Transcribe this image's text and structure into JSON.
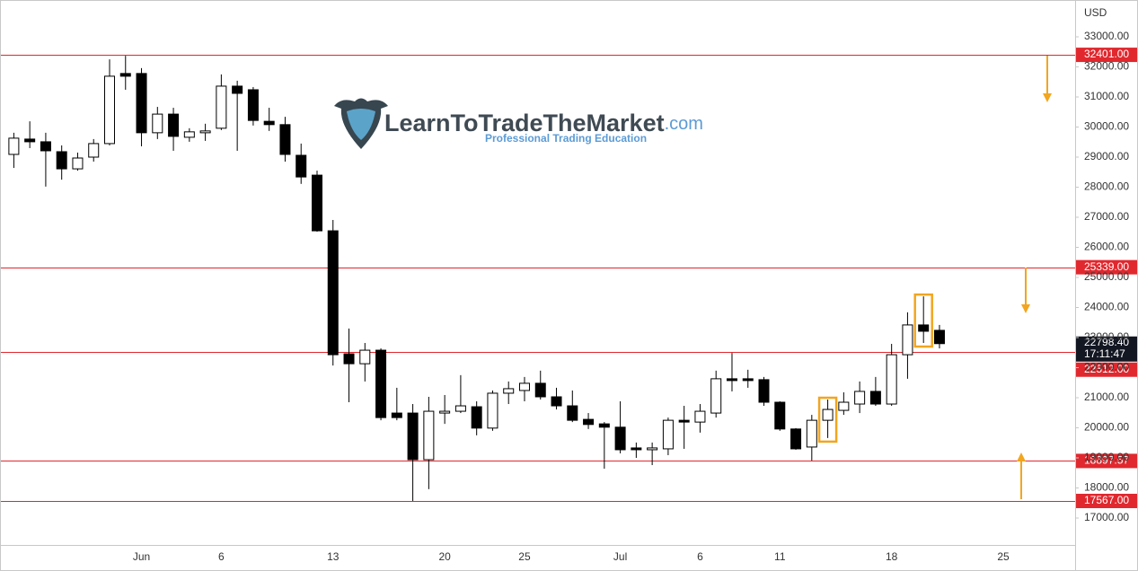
{
  "chart_data": {
    "type": "candlestick",
    "currency": "USD",
    "watermark": {
      "name": "LearnToTradeTheMarket",
      "domain": ".com",
      "tagline": "Professional Trading Education"
    },
    "categories": [
      null,
      null,
      null,
      null,
      null,
      null,
      null,
      null,
      "Jun",
      null,
      null,
      null,
      null,
      "6",
      null,
      null,
      null,
      null,
      null,
      null,
      "13",
      null,
      null,
      null,
      null,
      null,
      null,
      "20",
      null,
      null,
      null,
      null,
      "25",
      null,
      null,
      null,
      null,
      null,
      "Jul",
      null,
      null,
      null,
      null,
      "6",
      null,
      null,
      null,
      null,
      "11",
      null,
      null,
      null,
      null,
      null,
      null,
      "18",
      null,
      null,
      null,
      null,
      null,
      null,
      "25",
      null,
      null,
      null,
      null
    ],
    "open": [
      29090,
      29600,
      29510,
      29180,
      28610,
      29000,
      29450,
      31780,
      31780,
      29810,
      30430,
      29660,
      29810,
      29960,
      31360,
      31240,
      30190,
      30080,
      29060,
      28400,
      26550,
      22460,
      22130,
      22580,
      20490,
      20490,
      18940,
      20490,
      20550,
      20700,
      19990,
      21150,
      21240,
      21480,
      21030,
      20730,
      20280,
      20130,
      20020,
      19330,
      19270,
      19300,
      20250,
      20190,
      20490,
      21630,
      21630,
      21600,
      20850,
      19960,
      19360,
      20250,
      20580,
      20790,
      21210,
      20790,
      22430,
      23420,
      23240,
      null,
      null,
      null,
      null,
      null,
      null,
      null,
      null
    ],
    "high": [
      29810,
      30190,
      29810,
      29390,
      29150,
      29600,
      32250,
      32370,
      31960,
      30670,
      30640,
      29960,
      30110,
      31750,
      31540,
      31330,
      30640,
      30340,
      29450,
      28550,
      26910,
      23300,
      22820,
      22640,
      21330,
      20790,
      21030,
      21090,
      21750,
      20880,
      21240,
      21540,
      21690,
      21900,
      21330,
      21240,
      20490,
      20190,
      20880,
      19510,
      19510,
      20340,
      20730,
      20790,
      21900,
      22490,
      21930,
      21690,
      20880,
      19990,
      20430,
      20940,
      21180,
      21540,
      21690,
      22790,
      23840,
      24370,
      23420,
      null,
      null,
      null,
      null,
      null,
      null,
      null,
      null
    ],
    "low": [
      28640,
      29300,
      28020,
      28250,
      28550,
      28850,
      29390,
      31240,
      29360,
      29600,
      29210,
      29510,
      29540,
      29900,
      29210,
      30050,
      29870,
      28850,
      28110,
      26520,
      22070,
      20850,
      21540,
      20250,
      20250,
      17567,
      17960,
      20130,
      20490,
      19750,
      19900,
      20790,
      20880,
      20940,
      20610,
      20190,
      19960,
      18640,
      19150,
      19000,
      18760,
      19090,
      19300,
      19840,
      20340,
      21210,
      21330,
      20730,
      19900,
      19270,
      18910,
      19660,
      20430,
      20490,
      20730,
      20730,
      21630,
      22820,
      22640,
      null,
      null,
      null,
      null,
      null,
      null,
      null,
      null
    ],
    "close": [
      29630,
      29510,
      29210,
      28610,
      28970,
      29450,
      31690,
      31690,
      29810,
      30430,
      29690,
      29840,
      29870,
      31360,
      31120,
      30220,
      30080,
      29090,
      28340,
      26550,
      22430,
      22130,
      22580,
      20340,
      20340,
      18940,
      20550,
      20550,
      20730,
      19990,
      21150,
      21300,
      21480,
      21030,
      20730,
      20250,
      20110,
      20020,
      19270,
      19270,
      19330,
      20250,
      20190,
      20550,
      21630,
      21570,
      21570,
      20850,
      19960,
      19300,
      20250,
      20610,
      20850,
      21210,
      20790,
      22430,
      23420,
      23210,
      22798.4,
      null,
      null,
      null,
      null,
      null,
      null,
      null,
      null
    ],
    "up_color": "#ffffff",
    "down_color": "#000000",
    "ylim": [
      16104,
      34224
    ],
    "yticks": [
      {
        "value": 17000,
        "label": "17000.00"
      },
      {
        "value": 18000,
        "label": "18000.00"
      },
      {
        "value": 19000,
        "label": "19000.00"
      },
      {
        "value": 20000,
        "label": "20000.00"
      },
      {
        "value": 21000,
        "label": "21000.00"
      },
      {
        "value": 22000,
        "label": "22000.00"
      },
      {
        "value": 23000,
        "label": "23000.00"
      },
      {
        "value": 24000,
        "label": "24000.00"
      },
      {
        "value": 25000,
        "label": "25000.00"
      },
      {
        "value": 26000,
        "label": "26000.00"
      },
      {
        "value": 27000,
        "label": "27000.00"
      },
      {
        "value": 28000,
        "label": "28000.00"
      },
      {
        "value": 29000,
        "label": "29000.00"
      },
      {
        "value": 30000,
        "label": "30000.00"
      },
      {
        "value": 31000,
        "label": "31000.00"
      },
      {
        "value": 32000,
        "label": "32000.00"
      },
      {
        "value": 33000,
        "label": "33000.00"
      }
    ],
    "grid": false,
    "levels": [
      {
        "value": 32401,
        "label": "32401.00"
      },
      {
        "value": 25339,
        "label": "25339.00"
      },
      {
        "value": 22512,
        "label": "22512.00"
      },
      {
        "value": 18897.57,
        "label": "18897.57"
      },
      {
        "value": 17567,
        "label": "17567.00"
      }
    ],
    "level_color": "#e0282e",
    "current_price": {
      "value": 22798.4,
      "label": "22798.40",
      "countdown": "17:11:47"
    },
    "highlights": [
      51,
      57
    ],
    "highlight_color": "#f2a51f"
  }
}
